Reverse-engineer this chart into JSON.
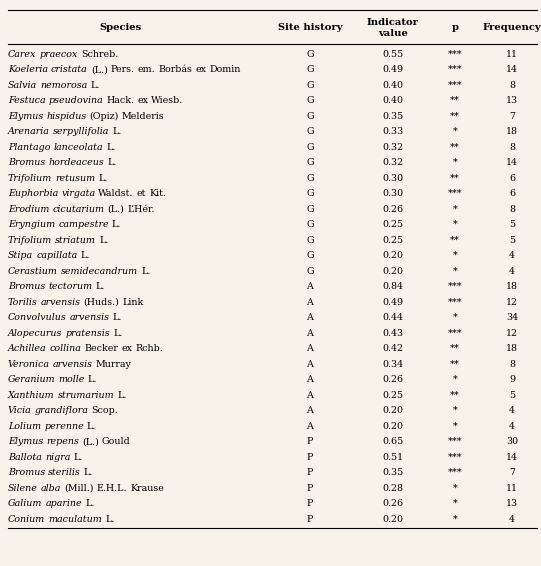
{
  "headers": [
    "Species",
    "Site history",
    "Indicator\nvalue",
    "p",
    "Frequency"
  ],
  "rows": [
    [
      "Carex praecox Schreb.",
      "G",
      "0.55",
      "***",
      "11"
    ],
    [
      "Koeleria cristata (L.) Pers. em. Borbás ex Domin",
      "G",
      "0.49",
      "***",
      "14"
    ],
    [
      "Salvia nemorosa L.",
      "G",
      "0.40",
      "***",
      "8"
    ],
    [
      "Festuca pseudovina Hack. ex Wiesb.",
      "G",
      "0.40",
      "**",
      "13"
    ],
    [
      "Elymus hispidus (Opiz) Melderis",
      "G",
      "0.35",
      "**",
      "7"
    ],
    [
      "Arenaria serpyllifolia L.",
      "G",
      "0.33",
      "*",
      "18"
    ],
    [
      "Plantago lanceolata L.",
      "G",
      "0.32",
      "**",
      "8"
    ],
    [
      "Bromus hordeaceus L.",
      "G",
      "0.32",
      "*",
      "14"
    ],
    [
      "Trifolium retusum L.",
      "G",
      "0.30",
      "**",
      "6"
    ],
    [
      "Euphorbia virgata Waldst. et Kit.",
      "G",
      "0.30",
      "***",
      "6"
    ],
    [
      "Erodium cicutarium (L.) L’Hér.",
      "G",
      "0.26",
      "*",
      "8"
    ],
    [
      "Eryngium campestre L.",
      "G",
      "0.25",
      "*",
      "5"
    ],
    [
      "Trifolium striatum L.",
      "G",
      "0.25",
      "**",
      "5"
    ],
    [
      "Stipa capillata L.",
      "G",
      "0.20",
      "*",
      "4"
    ],
    [
      "Cerastium semidecandrum L.",
      "G",
      "0.20",
      "*",
      "4"
    ],
    [
      "Bromus tectorum L.",
      "A",
      "0.84",
      "***",
      "18"
    ],
    [
      "Torilis arvensis (Huds.) Link",
      "A",
      "0.49",
      "***",
      "12"
    ],
    [
      "Convolvulus arvensis L.",
      "A",
      "0.44",
      "*",
      "34"
    ],
    [
      "Alopecurus pratensis L.",
      "A",
      "0.43",
      "***",
      "12"
    ],
    [
      "Achillea collina Becker ex Rchb.",
      "A",
      "0.42",
      "**",
      "18"
    ],
    [
      "Veronica arvensis Murray",
      "A",
      "0.34",
      "**",
      "8"
    ],
    [
      "Geranium molle L.",
      "A",
      "0.26",
      "*",
      "9"
    ],
    [
      "Xanthium strumarium L.",
      "A",
      "0.25",
      "**",
      "5"
    ],
    [
      "Vicia grandiflora Scop.",
      "A",
      "0.20",
      "*",
      "4"
    ],
    [
      "Lolium perenne L.",
      "A",
      "0.20",
      "*",
      "4"
    ],
    [
      "Elymus repens (L.) Gould",
      "P",
      "0.65",
      "***",
      "30"
    ],
    [
      "Ballota nigra L.",
      "P",
      "0.51",
      "***",
      "14"
    ],
    [
      "Bromus sterilis L.",
      "P",
      "0.35",
      "***",
      "7"
    ],
    [
      "Silene alba (Mill.) E.H.L. Krause",
      "P",
      "0.28",
      "*",
      "11"
    ],
    [
      "Galium aparine L.",
      "P",
      "0.26",
      "*",
      "13"
    ],
    [
      "Conium maculatum L.",
      "P",
      "0.20",
      "*",
      "4"
    ]
  ],
  "italic_words": {
    "Carex praecox Schreb.": [
      "Carex",
      "praecox"
    ],
    "Koeleria cristata (L.) Pers. em. Borbás ex Domin": [
      "Koeleria",
      "cristata"
    ],
    "Salvia nemorosa L.": [
      "Salvia",
      "nemorosa"
    ],
    "Festuca pseudovina Hack. ex Wiesb.": [
      "Festuca",
      "pseudovina"
    ],
    "Elymus hispidus (Opiz) Melderis": [
      "Elymus",
      "hispidus"
    ],
    "Arenaria serpyllifolia L.": [
      "Arenaria",
      "serpyllifolia"
    ],
    "Plantago lanceolata L.": [
      "Plantago",
      "lanceolata"
    ],
    "Bromus hordeaceus L.": [
      "Bromus",
      "hordeaceus"
    ],
    "Trifolium retusum L.": [
      "Trifolium",
      "retusum"
    ],
    "Euphorbia virgata Waldst. et Kit.": [
      "Euphorbia",
      "virgata"
    ],
    "Erodium cicutarium (L.) L’Hér.": [
      "Erodium",
      "cicutarium"
    ],
    "Eryngium campestre L.": [
      "Eryngium",
      "campestre"
    ],
    "Trifolium striatum L.": [
      "Trifolium",
      "striatum"
    ],
    "Stipa capillata L.": [
      "Stipa",
      "capillata"
    ],
    "Cerastium semidecandrum L.": [
      "Cerastium",
      "semidecandrum"
    ],
    "Bromus tectorum L.": [
      "Bromus",
      "tectorum"
    ],
    "Torilis arvensis (Huds.) Link": [
      "Torilis",
      "arvensis"
    ],
    "Convolvulus arvensis L.": [
      "Convolvulus",
      "arvensis"
    ],
    "Alopecurus pratensis L.": [
      "Alopecurus",
      "pratensis"
    ],
    "Achillea collina Becker ex Rchb.": [
      "Achillea",
      "collina"
    ],
    "Veronica arvensis Murray": [
      "Veronica",
      "arvensis"
    ],
    "Geranium molle L.": [
      "Geranium",
      "molle"
    ],
    "Xanthium strumarium L.": [
      "Xanthium",
      "strumarium"
    ],
    "Vicia grandiflora Scop.": [
      "Vicia",
      "grandiflora"
    ],
    "Lolium perenne L.": [
      "Lolium",
      "perenne"
    ],
    "Elymus repens (L.) Gould": [
      "Elymus",
      "repens"
    ],
    "Ballota nigra L.": [
      "Ballota",
      "nigra"
    ],
    "Bromus sterilis L.": [
      "Bromus",
      "sterilis"
    ],
    "Silene alba (Mill.) E.H.L. Krause": [
      "Silene",
      "alba"
    ],
    "Galium aparine L.": [
      "Galium",
      "aparine"
    ],
    "Conium maculatum L.": [
      "Conium",
      "maculatum"
    ]
  },
  "bg_color": "#f7f3eb",
  "font_size": 6.8,
  "header_font_size": 7.2,
  "fig_width": 5.41,
  "fig_height": 5.66,
  "dpi": 100
}
